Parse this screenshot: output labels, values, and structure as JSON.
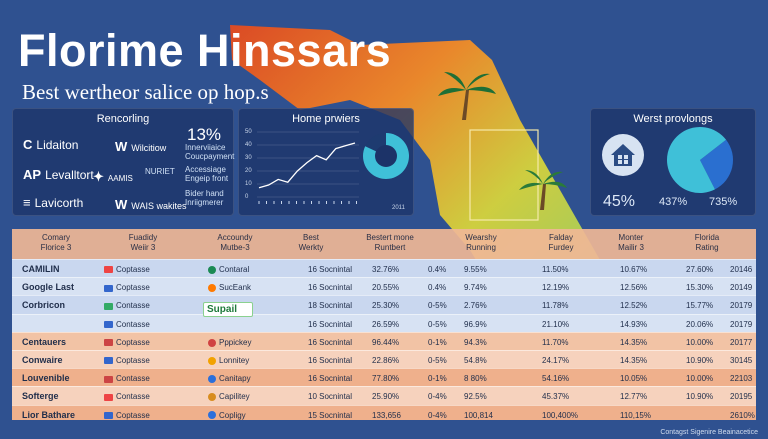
{
  "header": {
    "title": "Florime Hinssars",
    "subtitle": "Best wertheor salice op hop.s"
  },
  "panels": {
    "reporting": {
      "title": "Rencorling",
      "brands_left": [
        {
          "icon": "C",
          "label": "Lidaiton"
        },
        {
          "icon": "AP",
          "label": "Levalltort"
        },
        {
          "icon": "≡",
          "label": "Lavicorth"
        }
      ],
      "brands_mid": [
        {
          "icon": "W",
          "label": "Wilcitiow"
        },
        {
          "icon": "✦",
          "label": "AAMIS"
        },
        {
          "icon": "W",
          "label": "WAIS wakites"
        }
      ],
      "mid_extra": "NURIET",
      "percent": "13%",
      "notes": [
        "Innerviiaice",
        "Coucpayment",
        "Accessiage",
        "Engeip front",
        "Bider hand",
        "Inriigmerer"
      ]
    },
    "home": {
      "title": "Home prwiers",
      "axis_labels": [
        "50",
        "40",
        "30",
        "20",
        "10",
        "0"
      ],
      "year": "2011",
      "line_values": [
        8,
        10,
        14,
        12,
        20,
        26,
        31,
        28,
        36,
        38,
        40
      ],
      "donut_fraction": 0.82
    },
    "worst": {
      "title": "Werst provlongs",
      "percent_a": "45%",
      "percent_b": "437%",
      "percent_c": "735%",
      "pie_fraction": 0.72
    }
  },
  "table": {
    "headers": [
      [
        "Comary",
        "Florice 3"
      ],
      [
        "Fuadidy",
        "Weiir 3"
      ],
      [
        "Accoundy",
        "Mutbe-3"
      ],
      [
        "Best",
        "Werkty"
      ],
      [
        "Bestert mone",
        "Runtbert"
      ],
      [
        "Wearshy",
        "Running"
      ],
      [
        "Falday",
        "Furdey"
      ],
      [
        "Monter",
        "Mailir 3"
      ],
      [
        "Florida",
        "Rating"
      ]
    ],
    "rows": [
      {
        "company": "CAMILIN",
        "mark": "Coptasse",
        "account": "Contaral",
        "best": "16 Socnintal",
        "c1": "32.76%",
        "c2": "0.4%",
        "c3": "9.55%",
        "c4": "11.50%",
        "c5": "10.67%",
        "c6": "27.60%",
        "c7": "20146"
      },
      {
        "company": "Google Last",
        "mark": "Coptasse",
        "account": "SucEank",
        "best": "16 Socnintal",
        "c1": "20.55%",
        "c2": "0.4%",
        "c3": "9.74%",
        "c4": "12.19%",
        "c5": "12.56%",
        "c6": "15.30%",
        "c7": "20149"
      },
      {
        "company": "Corbricon",
        "mark": "Contasse",
        "account": "",
        "best": "18 Socnintal",
        "c1": "25.30%",
        "c2": "0-5%",
        "c3": "2.76%",
        "c4": "11.78%",
        "c5": "12.52%",
        "c6": "15.77%",
        "c7": "20179"
      },
      {
        "company": "",
        "mark": "Contasse",
        "account": "",
        "best": "16 Socnintal",
        "c1": "26.59%",
        "c2": "0-5%",
        "c3": "96.9%",
        "c4": "21.10%",
        "c5": "14.93%",
        "c6": "20.06%",
        "c7": "20179"
      },
      {
        "company": "Centauers",
        "mark": "Coptasse",
        "account": "Pppickey",
        "best": "16 Socnintal",
        "c1": "96.44%",
        "c2": "0-1%",
        "c3": "94.3%",
        "c4": "11.70%",
        "c5": "14.35%",
        "c6": "10.00%",
        "c7": "20177"
      },
      {
        "company": "Conwaire",
        "mark": "Coptasse",
        "account": "Lonnitey",
        "best": "16 Socnintal",
        "c1": "22.86%",
        "c2": "0-5%",
        "c3": "54.8%",
        "c4": "24.17%",
        "c5": "14.35%",
        "c6": "10.90%",
        "c7": "30145"
      },
      {
        "company": "Louvenible",
        "mark": "Contasse",
        "account": "Canitapy",
        "best": "16 Socnintal",
        "c1": "77.80%",
        "c2": "0-1%",
        "c3": "8 80%",
        "c4": "54.16%",
        "c5": "10.05%",
        "c6": "10.00%",
        "c7": "22103"
      },
      {
        "company": "Softerge",
        "mark": "Contasse",
        "account": "Capilitey",
        "best": "10 Socnintal",
        "c1": "25.90%",
        "c2": "0-4%",
        "c3": "92.5%",
        "c4": "45.37%",
        "c5": "12.77%",
        "c6": "10.90%",
        "c7": "20195"
      },
      {
        "company": "Lior Bathare",
        "mark": "Coptasse",
        "account": "Copligy",
        "best": "15 Socnintal",
        "c1": "133,656",
        "c2": "0-4%",
        "c3": "100,814",
        "c4": "100,400%",
        "c5": "110,15%",
        "c6": "",
        "c7": "2610%"
      }
    ],
    "suppl_badge": "Supail"
  },
  "footer": {
    "note": "Contagst Sigenire Beainacetice"
  },
  "colors": {
    "background": "#2f5190",
    "accent_cyan": "#3fc0d8",
    "row_blue": "#c9d7ef",
    "row_peach": "#f2c3a5",
    "row_orange": "#efb08c"
  }
}
